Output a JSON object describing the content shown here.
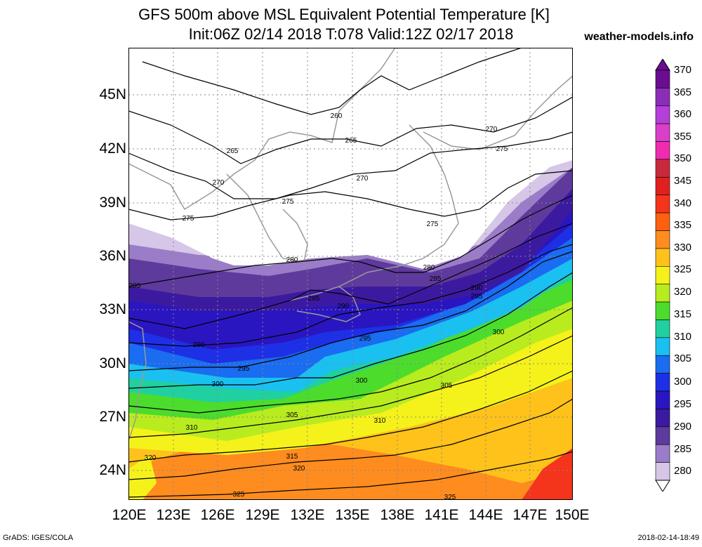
{
  "title_line1": "GFS 500m above MSL Equivalent Potential Temperature [K]",
  "title_line2": "Init:06Z 02/14 2018 T:078 Valid:12Z 02/17 2018",
  "site": "weather-models.info",
  "footer_left": "GrADS: IGES/COLA",
  "footer_right": "2018-02-14-18:49",
  "axes": {
    "y_ticks": [
      "45N",
      "42N",
      "39N",
      "36N",
      "33N",
      "30N",
      "27N",
      "24N"
    ],
    "x_ticks": [
      "120E",
      "123E",
      "126E",
      "129E",
      "132E",
      "135E",
      "138E",
      "141E",
      "144E",
      "147E",
      "150E"
    ]
  },
  "colorbar": {
    "labels": [
      "370",
      "365",
      "360",
      "355",
      "350",
      "345",
      "340",
      "335",
      "330",
      "325",
      "320",
      "315",
      "310",
      "305",
      "300",
      "295",
      "290",
      "285",
      "280"
    ],
    "colors": [
      "#6a0d91",
      "#8c2db8",
      "#b53fd8",
      "#d93fc9",
      "#f02bb0",
      "#c82a3c",
      "#e01f1f",
      "#f5341c",
      "#ff6010",
      "#ff8c1f",
      "#ffc21a",
      "#f4f21a",
      "#b8ec1e",
      "#4cdc2c",
      "#20d0a0",
      "#1ac0f0",
      "#1a6cf0",
      "#1e30e6",
      "#2a16c0",
      "#3c1aa0",
      "#5e3a9c",
      "#9b7cc8",
      "#d6c6e8"
    ],
    "colors_note": "bins top to bottom"
  },
  "contours": {
    "labels": [
      "260",
      "265",
      "265",
      "270",
      "270",
      "270",
      "275",
      "275",
      "275",
      "275",
      "280",
      "280",
      "285",
      "285",
      "285",
      "290",
      "290",
      "290",
      "295",
      "295",
      "295",
      "300",
      "300",
      "300",
      "305",
      "305",
      "310",
      "310",
      "315",
      "320",
      "320",
      "325",
      "325"
    ]
  }
}
